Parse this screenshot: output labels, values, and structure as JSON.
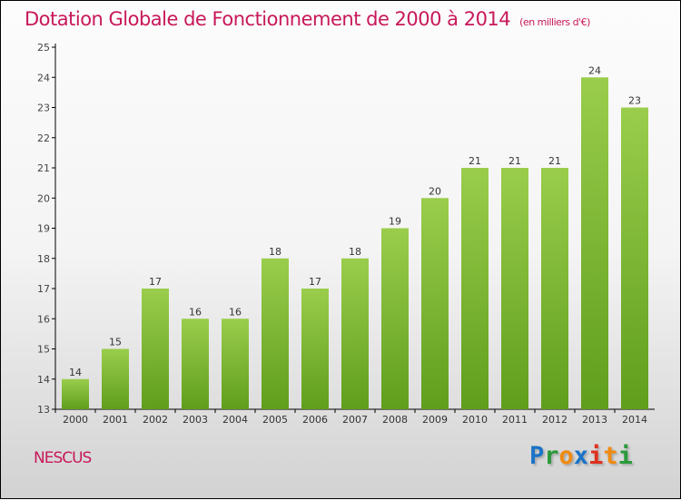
{
  "chart_data": {
    "type": "bar",
    "title": "Dotation Globale de Fonctionnement de 2000 à 2014",
    "unit": "(en milliers d'€)",
    "categories": [
      "2000",
      "2001",
      "2002",
      "2003",
      "2004",
      "2005",
      "2006",
      "2007",
      "2008",
      "2009",
      "2010",
      "2011",
      "2012",
      "2013",
      "2014"
    ],
    "values": [
      14,
      15,
      17,
      16,
      16,
      18,
      17,
      18,
      19,
      20,
      21,
      21,
      21,
      24,
      23
    ],
    "ylim": [
      13,
      25
    ],
    "yticks": [
      13,
      14,
      15,
      16,
      17,
      18,
      19,
      20,
      21,
      22,
      23,
      24,
      25
    ],
    "xlabel": "",
    "ylabel": "",
    "bar_color_top": "#9acd4c",
    "bar_color_bottom": "#5f9e1c"
  },
  "town": "NESCUS",
  "logo": {
    "text": "Proxiti",
    "letters": [
      [
        "P",
        "#1a73c8"
      ],
      [
        "r",
        "#2a9a3a"
      ],
      [
        "o",
        "#f08a10"
      ],
      [
        "x",
        "#1a73c8"
      ],
      [
        "i",
        "#e03020"
      ],
      [
        "t",
        "#f08a10"
      ],
      [
        "i",
        "#2a9a3a"
      ]
    ]
  }
}
